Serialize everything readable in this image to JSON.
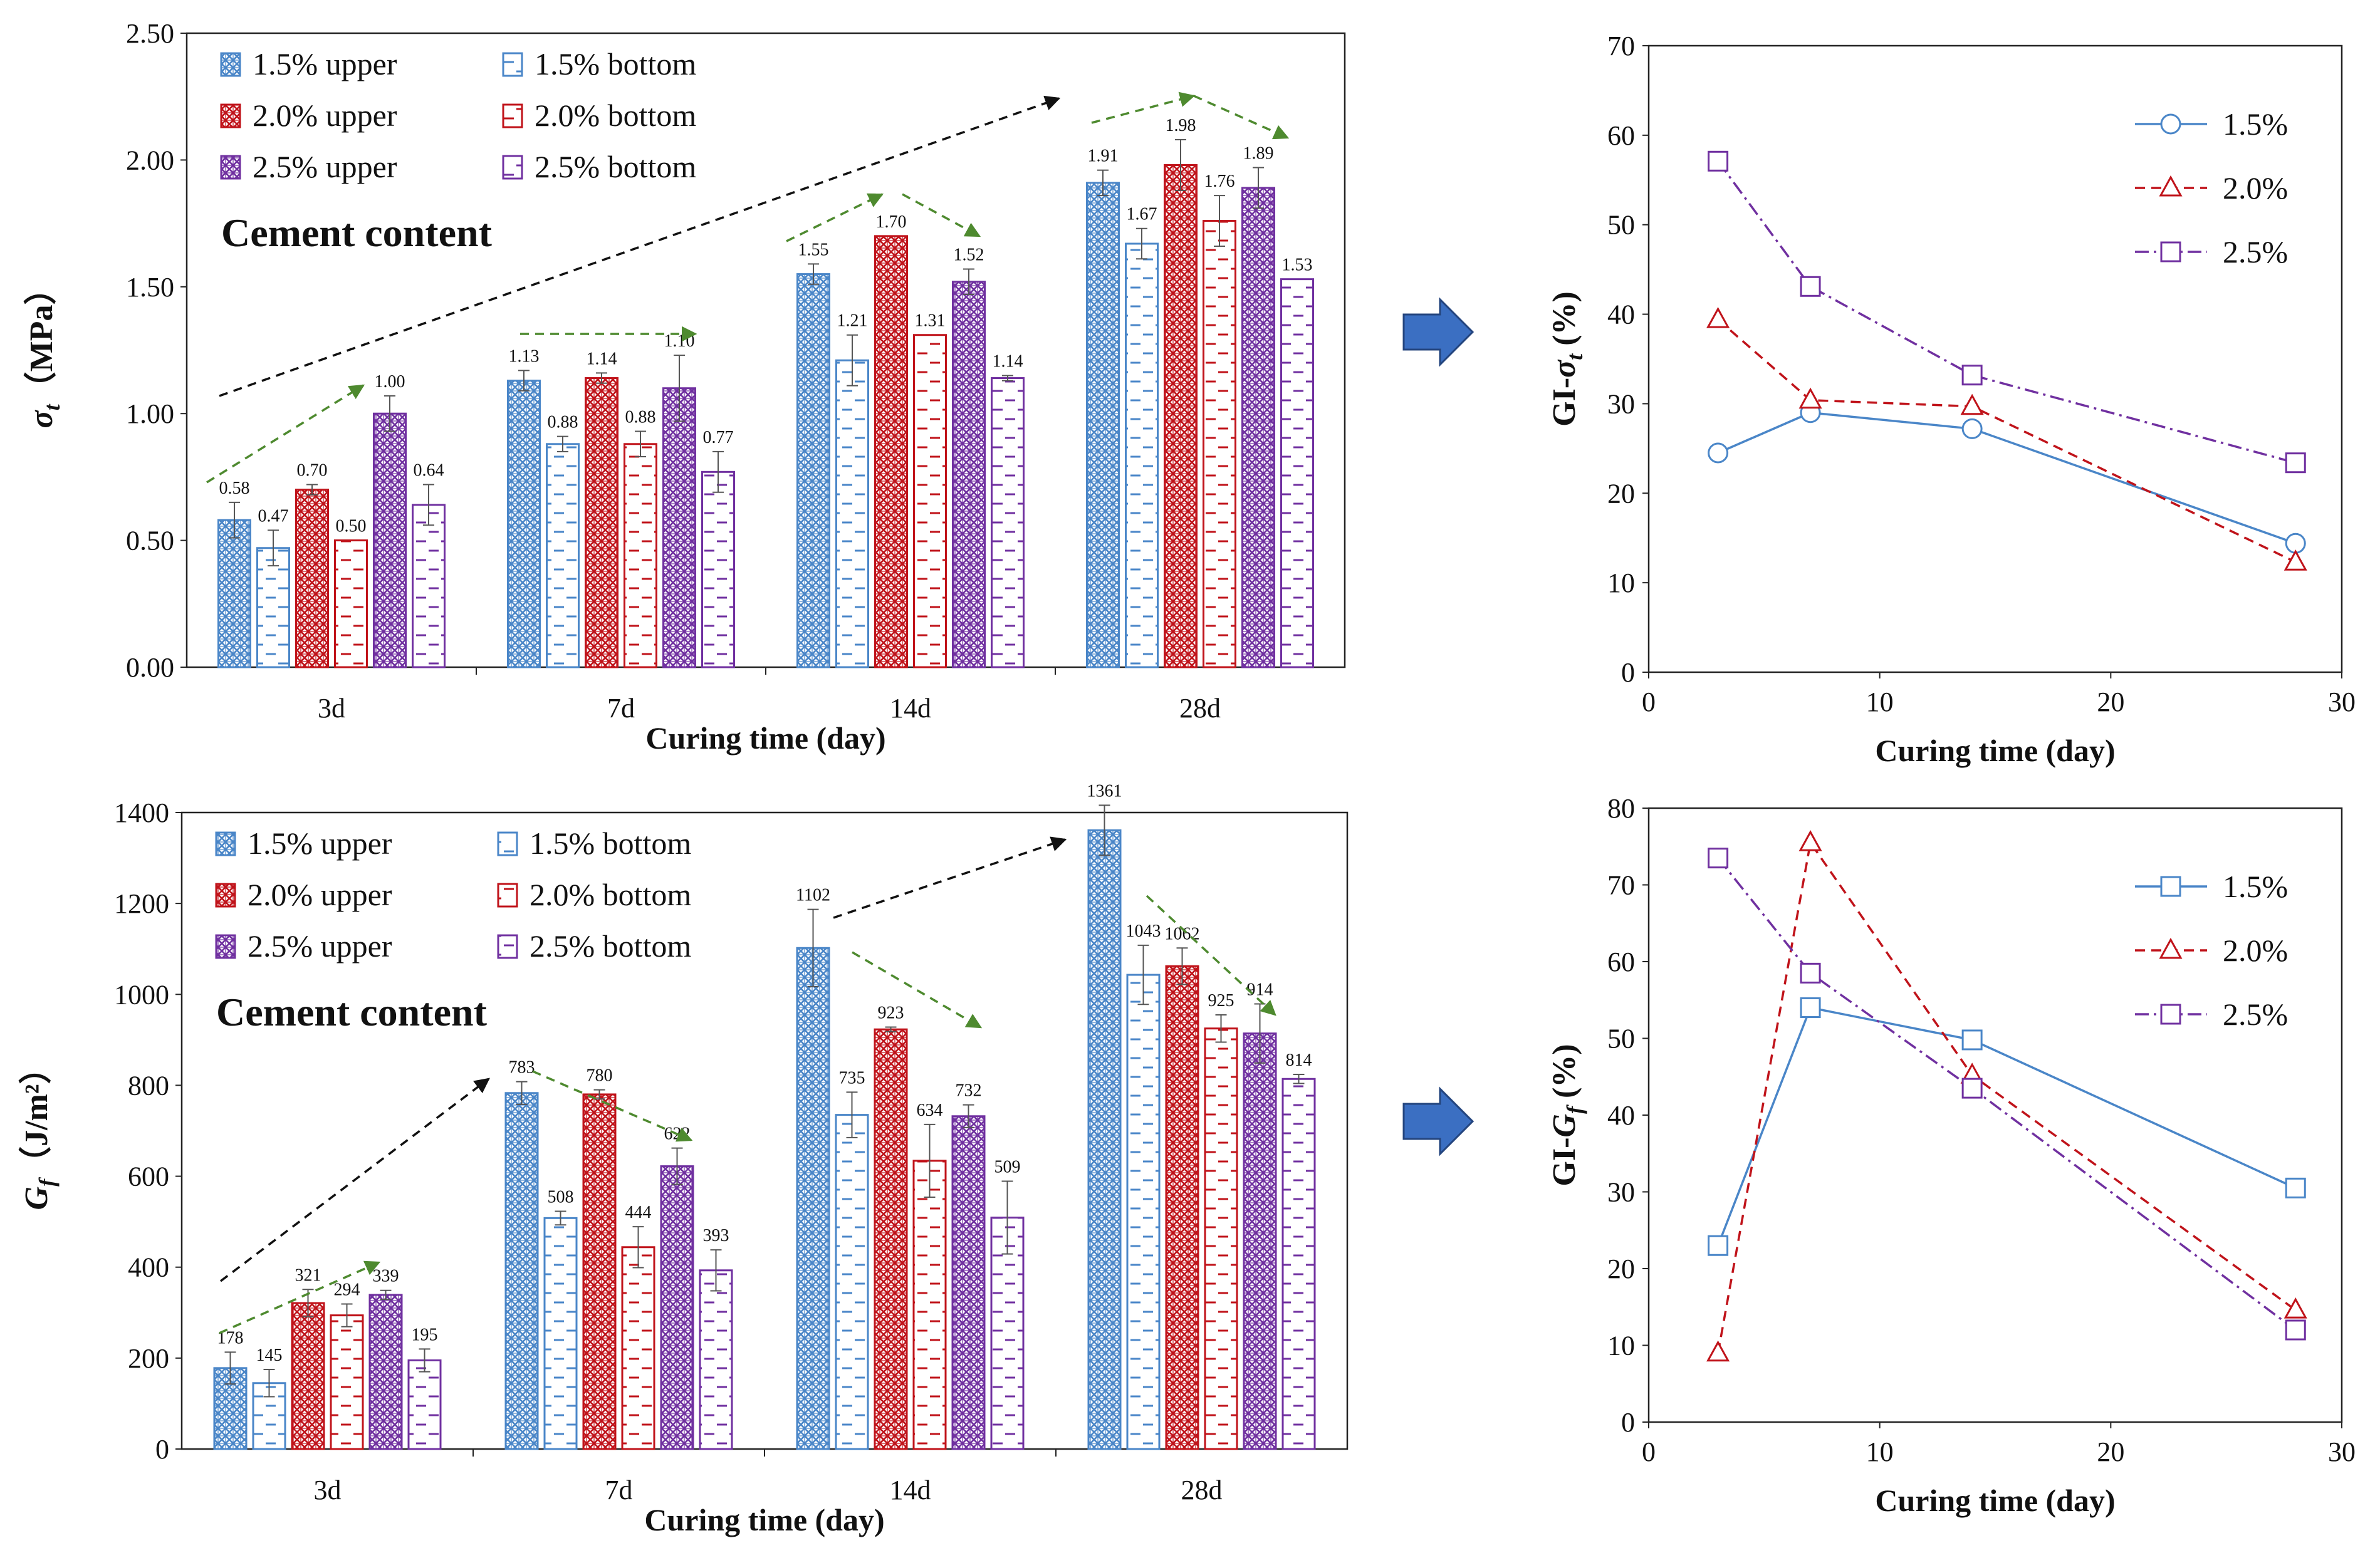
{
  "colors": {
    "c15": "#4a86c8",
    "c20": "#c0131a",
    "c25": "#7030a0",
    "green": "#4e8a2f",
    "black": "#111111",
    "arrow_fill": "#3b6fc2"
  },
  "chart_data": [
    {
      "id": "sigma_bar",
      "type": "bar",
      "title": "",
      "xlabel": "Curing time (day)",
      "ylabel_symbol": "σ",
      "ylabel_sub": "t",
      "ylabel_unit": "（MPa）",
      "categories": [
        "3d",
        "7d",
        "14d",
        "28d"
      ],
      "ylim": [
        0,
        2.5
      ],
      "ytick_labels": [
        "0.00",
        "0.50",
        "1.00",
        "1.50",
        "2.00",
        "2.50"
      ],
      "legend_title": "Cement content",
      "value_decimals": 2,
      "series": [
        {
          "name": "1.5% upper",
          "values": [
            0.58,
            1.13,
            1.55,
            1.91
          ],
          "errors": [
            0.07,
            0.04,
            0.04,
            0.05
          ]
        },
        {
          "name": "1.5% bottom",
          "values": [
            0.47,
            0.88,
            1.21,
            1.67
          ],
          "errors": [
            0.07,
            0.03,
            0.1,
            0.06
          ]
        },
        {
          "name": "2.0% upper",
          "values": [
            0.7,
            1.14,
            1.7,
            1.98
          ],
          "errors": [
            0.02,
            0.02,
            0.0,
            0.1
          ]
        },
        {
          "name": "2.0% bottom",
          "values": [
            0.5,
            0.88,
            1.31,
            1.76
          ],
          "errors": [
            0.0,
            0.05,
            0.0,
            0.1
          ]
        },
        {
          "name": "2.5% upper",
          "values": [
            1.0,
            1.1,
            1.52,
            1.89
          ],
          "errors": [
            0.07,
            0.13,
            0.05,
            0.08
          ]
        },
        {
          "name": "2.5% bottom",
          "values": [
            0.64,
            0.77,
            1.14,
            1.53
          ],
          "errors": [
            0.08,
            0.08,
            0.01,
            0.0
          ]
        }
      ]
    },
    {
      "id": "gi_sigma_line",
      "type": "line",
      "title": "",
      "xlabel": "Curing time (day)",
      "ylabel_prefix": "GI-",
      "ylabel_symbol": "σ",
      "ylabel_sub": "t",
      "ylabel_unit": " (%)",
      "xlim": [
        0,
        30
      ],
      "xticks": [
        0,
        10,
        20,
        30
      ],
      "ylim": [
        0,
        70
      ],
      "yticks": [
        0,
        10,
        20,
        30,
        40,
        50,
        60,
        70
      ],
      "x": [
        3,
        7,
        14,
        28
      ],
      "series": [
        {
          "name": "1.5%",
          "values": [
            24.5,
            29.0,
            27.2,
            14.4
          ]
        },
        {
          "name": "2.0%",
          "values": [
            39.4,
            30.4,
            29.7,
            12.3
          ]
        },
        {
          "name": "2.5%",
          "values": [
            57.1,
            43.1,
            33.2,
            23.4
          ]
        }
      ]
    },
    {
      "id": "gf_bar",
      "type": "bar",
      "title": "",
      "xlabel": "Curing time (day)",
      "ylabel_symbol": "G",
      "ylabel_sub": "f",
      "ylabel_unit": "（J/m²）",
      "categories": [
        "3d",
        "7d",
        "14d",
        "28d"
      ],
      "ylim": [
        0,
        1400
      ],
      "ytick_labels": [
        "0",
        "200",
        "400",
        "600",
        "800",
        "1000",
        "1200",
        "1400"
      ],
      "legend_title": "Cement content",
      "value_decimals": 0,
      "series": [
        {
          "name": "1.5% upper",
          "values": [
            178,
            783,
            1102,
            1361
          ],
          "errors": [
            35,
            25,
            85,
            55
          ]
        },
        {
          "name": "1.5% bottom",
          "values": [
            145,
            508,
            735,
            1043
          ],
          "errors": [
            30,
            15,
            50,
            65
          ]
        },
        {
          "name": "2.0% upper",
          "values": [
            321,
            780,
            923,
            1062
          ],
          "errors": [
            30,
            10,
            5,
            40
          ]
        },
        {
          "name": "2.0% bottom",
          "values": [
            294,
            444,
            634,
            925
          ],
          "errors": [
            25,
            45,
            80,
            30
          ]
        },
        {
          "name": "2.5% upper",
          "values": [
            339,
            622,
            732,
            914
          ],
          "errors": [
            10,
            40,
            25,
            65
          ]
        },
        {
          "name": "2.5% bottom",
          "values": [
            195,
            393,
            509,
            814
          ],
          "errors": [
            25,
            45,
            80,
            10
          ]
        }
      ]
    },
    {
      "id": "gi_gf_line",
      "type": "line",
      "title": "",
      "xlabel": "Curing time (day)",
      "ylabel_prefix": "GI-",
      "ylabel_symbol": "G",
      "ylabel_sub": "f",
      "ylabel_unit": " (%)",
      "xlim": [
        0,
        30
      ],
      "xticks": [
        0,
        10,
        20,
        30
      ],
      "ylim": [
        0,
        80
      ],
      "yticks": [
        0,
        10,
        20,
        30,
        40,
        50,
        60,
        70,
        80
      ],
      "x": [
        3,
        7,
        14,
        28
      ],
      "series": [
        {
          "name": "1.5%",
          "values": [
            23.0,
            54.0,
            49.8,
            30.5
          ]
        },
        {
          "name": "2.0%",
          "values": [
            9.0,
            75.5,
            45.2,
            14.6
          ]
        },
        {
          "name": "2.5%",
          "values": [
            73.5,
            58.5,
            43.5,
            12.0
          ]
        }
      ]
    }
  ]
}
